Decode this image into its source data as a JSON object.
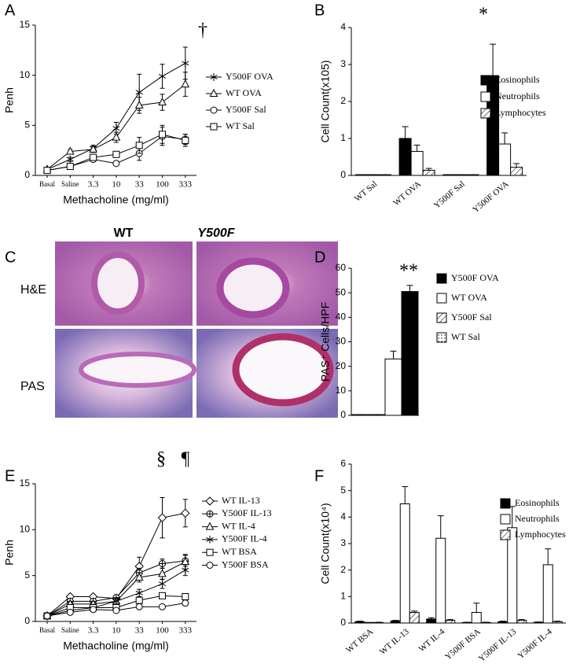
{
  "chart_data": [
    {
      "type": "line",
      "panel": "A",
      "ylabel": "Penh",
      "xlabel": "Methacholine (mg/ml)",
      "categories": [
        "Basal",
        "Saline",
        "3.3",
        "10",
        "33",
        "100",
        "333"
      ],
      "ylim": [
        0,
        15
      ],
      "yticks": [
        0,
        5,
        10,
        15
      ],
      "annotations": [
        "†"
      ],
      "series": [
        {
          "name": "Y500F OVA",
          "color": "#000000",
          "marker": "asterisk",
          "values": [
            0.6,
            1.6,
            2.7,
            4.7,
            8.3,
            9.9,
            11.2
          ],
          "errors": [
            0.1,
            0.2,
            0.3,
            0.6,
            1.8,
            1.2,
            1.6
          ]
        },
        {
          "name": "WT OVA",
          "color": "#000000",
          "marker": "triangle",
          "values": [
            0.6,
            2.4,
            2.6,
            3.8,
            7.0,
            7.3,
            9.1
          ],
          "errors": [
            0.1,
            0.2,
            0.3,
            0.5,
            0.8,
            0.8,
            1.2
          ]
        },
        {
          "name": "Y500F Sal",
          "color": "#000000",
          "marker": "circle",
          "values": [
            0.5,
            0.9,
            1.6,
            1.2,
            2.2,
            3.9,
            3.6
          ],
          "errors": [
            0.1,
            0.1,
            0.2,
            0.2,
            0.7,
            0.9,
            0.5
          ]
        },
        {
          "name": "WT Sal",
          "color": "#000000",
          "marker": "square",
          "values": [
            0.5,
            0.9,
            1.8,
            2.1,
            3.0,
            4.1,
            3.5
          ],
          "errors": [
            0.1,
            0.1,
            0.2,
            0.3,
            0.8,
            0.9,
            0.6
          ]
        }
      ]
    },
    {
      "type": "bar",
      "panel": "B",
      "ylabel": "Cell Count(x105)",
      "categories": [
        "WT Sal",
        "WT OVA",
        "Y500F Sal",
        "Y500F OVA"
      ],
      "ylim": [
        0,
        4
      ],
      "yticks": [
        0,
        1,
        2,
        3,
        4
      ],
      "annotations": [
        "*"
      ],
      "series": [
        {
          "name": "Eosinophils",
          "color": "#000000",
          "values": [
            0.02,
            1.0,
            0.02,
            2.7
          ],
          "errors": [
            0,
            0.32,
            0,
            0.85
          ]
        },
        {
          "name": "Neutrophils",
          "color": "#ffffff",
          "values": [
            0.02,
            0.65,
            0.02,
            0.85
          ],
          "errors": [
            0,
            0.17,
            0,
            0.3
          ]
        },
        {
          "name": "Lymphocytes",
          "color": "#ffffff",
          "pattern": "hatch",
          "values": [
            0.02,
            0.14,
            0.02,
            0.22
          ],
          "errors": [
            0,
            0.05,
            0,
            0.1
          ]
        }
      ]
    },
    {
      "type": "bar",
      "panel": "D",
      "ylabel": "PAS⁺ Cells/HPF",
      "categories": [
        null
      ],
      "ylim": [
        0,
        60
      ],
      "yticks": [
        0,
        10,
        20,
        30,
        40,
        50,
        60
      ],
      "annotations": [
        "**"
      ],
      "reverse_draw": true,
      "series": [
        {
          "name": "Y500F OVA",
          "color": "#000000",
          "values": [
            50.5
          ],
          "errors": [
            2.5
          ]
        },
        {
          "name": "WT OVA",
          "color": "#ffffff",
          "values": [
            23
          ],
          "errors": [
            3.2
          ]
        },
        {
          "name": "Y500F Sal",
          "color": "#ffffff",
          "pattern": "hatch",
          "values": [
            0.3
          ],
          "errors": [
            0
          ]
        },
        {
          "name": "WT Sal",
          "color": "#ffffff",
          "pattern": "dots",
          "values": [
            0.3
          ],
          "errors": [
            0
          ]
        }
      ]
    },
    {
      "type": "line",
      "panel": "E",
      "ylabel": "Penh",
      "xlabel": "Methacholine (mg/ml)",
      "categories": [
        "Basal",
        "Saline",
        "3.3",
        "10",
        "33",
        "100",
        "333"
      ],
      "ylim": [
        0,
        15
      ],
      "yticks": [
        0,
        5,
        10,
        15
      ],
      "annotations": [
        "§",
        "¶"
      ],
      "series": [
        {
          "name": "WT IL-13",
          "color": "#000000",
          "marker": "diamond",
          "values": [
            0.6,
            2.7,
            2.7,
            2.5,
            6.0,
            11.3,
            11.8
          ],
          "errors": [
            0.1,
            0.2,
            0.2,
            0.3,
            1.0,
            2.2,
            1.5
          ]
        },
        {
          "name": "Y500F IL-13",
          "color": "#000000",
          "marker": "crossed-circle",
          "values": [
            0.6,
            2.2,
            2.2,
            2.6,
            5.3,
            6.3,
            6.6
          ],
          "errors": [
            0.1,
            0.2,
            0.2,
            0.3,
            0.5,
            0.5,
            0.6
          ]
        },
        {
          "name": "WT IL-4",
          "color": "#000000",
          "marker": "triangle",
          "values": [
            0.6,
            1.9,
            1.9,
            2.2,
            4.8,
            5.2,
            6.5
          ],
          "errors": [
            0.1,
            0.2,
            0.2,
            0.3,
            0.5,
            0.6,
            0.8
          ]
        },
        {
          "name": "Y500F IL-4",
          "color": "#000000",
          "marker": "asterisk",
          "values": [
            0.6,
            1.2,
            1.5,
            2.2,
            3.1,
            4.1,
            5.6
          ],
          "errors": [
            0.1,
            0.2,
            0.2,
            0.3,
            0.4,
            0.5,
            0.6
          ]
        },
        {
          "name": "WT BSA",
          "color": "#000000",
          "marker": "square",
          "values": [
            0.6,
            1.5,
            1.5,
            1.5,
            2.3,
            2.8,
            2.7
          ],
          "errors": [
            0.1,
            0.2,
            0.2,
            0.2,
            0.3,
            0.3,
            0.3
          ]
        },
        {
          "name": "Y500F BSA",
          "color": "#000000",
          "marker": "circle",
          "values": [
            0.6,
            1.0,
            1.3,
            1.2,
            1.6,
            1.6,
            2.0
          ],
          "errors": [
            0.1,
            0.2,
            0.2,
            0.2,
            0.2,
            0.2,
            0.2
          ]
        }
      ]
    },
    {
      "type": "bar",
      "panel": "F",
      "ylabel": "Cell Count(x10⁴)",
      "categories": [
        "WT BSA",
        "WT IL-13",
        "WT IL-4",
        "Y500F BSA",
        "Y500F IL-13",
        "Y500F IL-4"
      ],
      "ylim": [
        0,
        6
      ],
      "yticks": [
        0,
        1,
        2,
        3,
        4,
        5,
        6
      ],
      "series": [
        {
          "name": "Eosinophils",
          "color": "#000000",
          "values": [
            0.05,
            0.08,
            0.15,
            0.02,
            0.05,
            0.03
          ],
          "errors": [
            0.02,
            0.02,
            0.05,
            0.01,
            0.02,
            0.01
          ]
        },
        {
          "name": "Neutrophils",
          "color": "#ffffff",
          "values": [
            0.02,
            4.5,
            3.2,
            0.4,
            3.6,
            2.2
          ],
          "errors": [
            0,
            0.65,
            0.85,
            0.35,
            0.8,
            0.6
          ]
        },
        {
          "name": "Lymphocytes",
          "color": "#ffffff",
          "pattern": "hatch",
          "values": [
            0.02,
            0.4,
            0.1,
            0.02,
            0.1,
            0.05
          ],
          "errors": [
            0.01,
            0.05,
            0.03,
            0.01,
            0.03,
            0.02
          ]
        }
      ]
    }
  ],
  "image_panel": {
    "panel": "C",
    "columns": [
      "WT",
      "Y500F"
    ],
    "rows": [
      "H&E",
      "PAS"
    ]
  }
}
